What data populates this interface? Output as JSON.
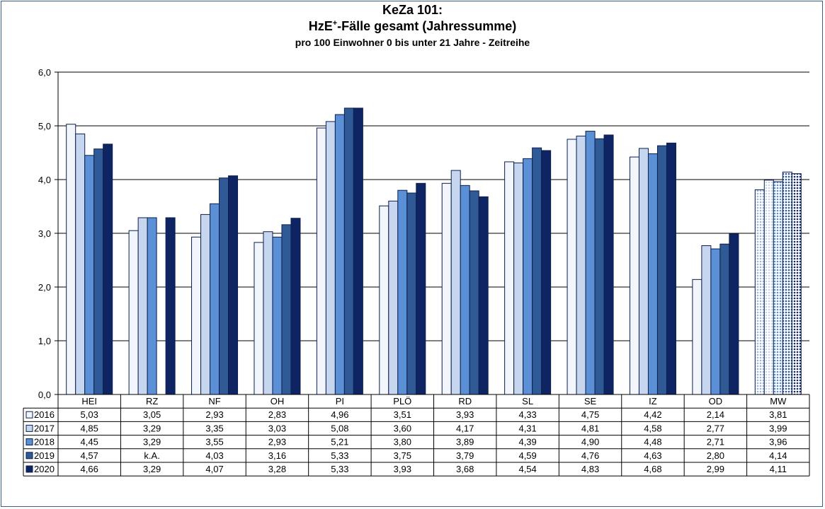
{
  "chart_data": {
    "type": "bar",
    "title": "KeZa 101:",
    "subtitle_main": "HzE",
    "subtitle_sup": "+",
    "subtitle_rest": "-Fälle gesamt (Jahressumme)",
    "subtitle2": "pro 100 Einwohner 0 bis unter 21 Jahre - Zeitreihe",
    "categories": [
      "HEI",
      "RZ",
      "NF",
      "OH",
      "PI",
      "PLÖ",
      "RD",
      "SL",
      "SE",
      "IZ",
      "OD",
      "MW"
    ],
    "ylim": [
      0,
      6
    ],
    "yticks": [
      "0,0",
      "1,0",
      "2,0",
      "3,0",
      "4,0",
      "5,0",
      "6,0"
    ],
    "grid": true,
    "legend": "data-table",
    "series": [
      {
        "name": "2016",
        "color": "#f2f6fc",
        "values": [
          5.03,
          3.05,
          2.93,
          2.83,
          4.96,
          3.51,
          3.93,
          4.33,
          4.75,
          4.42,
          2.14,
          3.81
        ],
        "labels": [
          "5,03",
          "3,05",
          "2,93",
          "2,83",
          "4,96",
          "3,51",
          "3,93",
          "4,33",
          "4,75",
          "4,42",
          "2,14",
          "3,81"
        ]
      },
      {
        "name": "2017",
        "color": "#c6d6ee",
        "values": [
          4.85,
          3.29,
          3.35,
          3.03,
          5.08,
          3.6,
          4.17,
          4.31,
          4.81,
          4.58,
          2.77,
          3.99
        ],
        "labels": [
          "4,85",
          "3,29",
          "3,35",
          "3,03",
          "5,08",
          "3,60",
          "4,17",
          "4,31",
          "4,81",
          "4,58",
          "2,77",
          "3,99"
        ]
      },
      {
        "name": "2018",
        "color": "#5b8fd6",
        "values": [
          4.45,
          3.29,
          3.55,
          2.93,
          5.21,
          3.8,
          3.89,
          4.39,
          4.9,
          4.48,
          2.71,
          3.96
        ],
        "labels": [
          "4,45",
          "3,29",
          "3,55",
          "2,93",
          "5,21",
          "3,80",
          "3,89",
          "4,39",
          "4,90",
          "4,48",
          "2,71",
          "3,96"
        ]
      },
      {
        "name": "2019",
        "color": "#2f5a96",
        "values": [
          4.57,
          null,
          4.03,
          3.16,
          5.33,
          3.75,
          3.79,
          4.59,
          4.76,
          4.63,
          2.8,
          4.14
        ],
        "labels": [
          "4,57",
          "k.A.",
          "4,03",
          "3,16",
          "5,33",
          "3,75",
          "3,79",
          "4,59",
          "4,76",
          "4,63",
          "2,80",
          "4,14"
        ]
      },
      {
        "name": "2020",
        "color": "#0f2563",
        "values": [
          4.66,
          3.29,
          4.07,
          3.28,
          5.33,
          3.93,
          3.68,
          4.54,
          4.83,
          4.68,
          2.99,
          4.11
        ],
        "labels": [
          "4,66",
          "3,29",
          "4,07",
          "3,28",
          "5,33",
          "3,93",
          "3,68",
          "4,54",
          "4,83",
          "4,68",
          "2,99",
          "4,11"
        ]
      }
    ],
    "patterned_category": "MW"
  }
}
